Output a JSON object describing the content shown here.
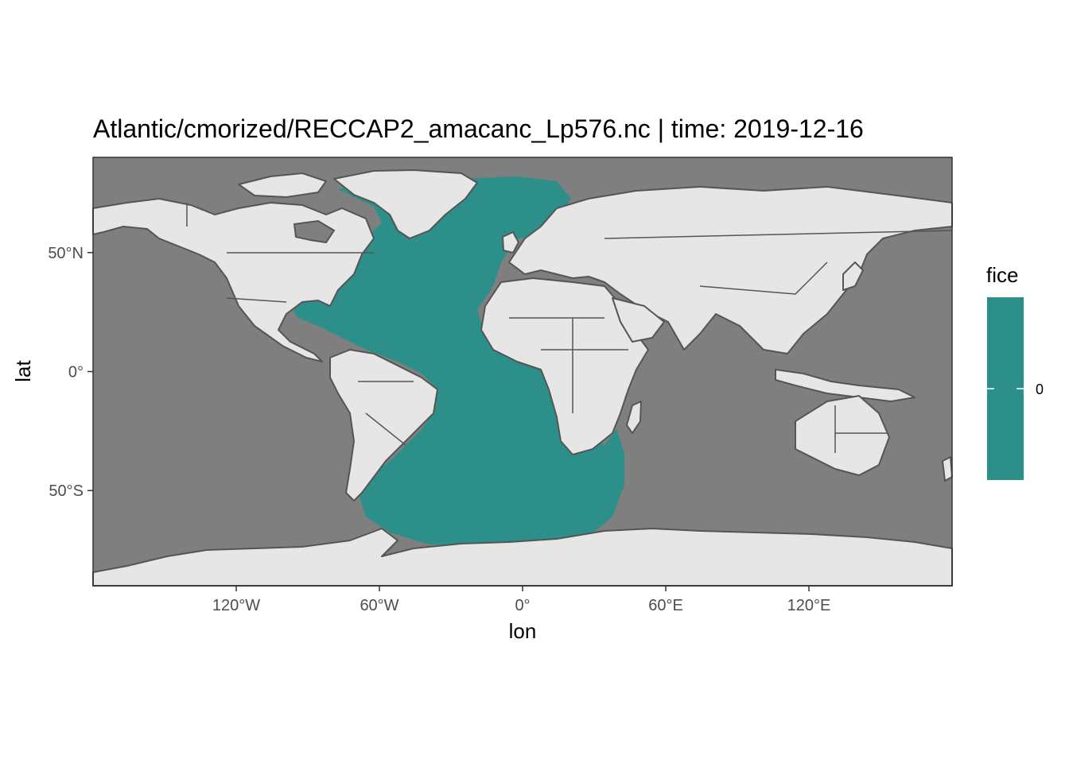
{
  "title": "Atlantic/cmorized/RECCAP2_amacanc_Lp576.nc | time:  2019-12-16",
  "x_axis": {
    "label": "lon",
    "ticks": [
      {
        "value": -120,
        "label": "120°W"
      },
      {
        "value": -60,
        "label": "60°W"
      },
      {
        "value": 0,
        "label": "0°"
      },
      {
        "value": 60,
        "label": "60°E"
      },
      {
        "value": 120,
        "label": "120°E"
      }
    ],
    "range": [
      -180,
      180
    ]
  },
  "y_axis": {
    "label": "lat",
    "ticks": [
      {
        "value": 50,
        "label": "50°N"
      },
      {
        "value": 0,
        "label": "0°"
      },
      {
        "value": -50,
        "label": "50°S"
      }
    ],
    "range": [
      -90,
      90
    ]
  },
  "legend": {
    "title": "fice",
    "label": "0",
    "color": "#2c8f8a"
  },
  "colors": {
    "ocean": "#7f7f7f",
    "land": "#e6e6e6",
    "coast": "#555555",
    "data_region": "#2c8f8a"
  },
  "chart_data": {
    "type": "heatmap",
    "variable": "fice",
    "region": "Atlantic",
    "value": 0,
    "grid": false,
    "legend_position": "right"
  }
}
